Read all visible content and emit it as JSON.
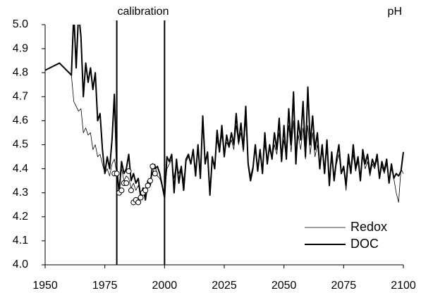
{
  "chart_data": {
    "type": "line",
    "annotation": "calibration",
    "ylabel": "pH",
    "xlim": [
      1950,
      2100
    ],
    "xticks": [
      1950,
      1975,
      2000,
      2025,
      2050,
      2075,
      2100
    ],
    "ylim": [
      4.0,
      5.0
    ],
    "yticks": [
      {
        "value": 4.0,
        "label": "4.0"
      },
      4.1,
      4.2,
      4.3,
      4.4,
      4.5,
      4.6,
      4.7,
      4.8,
      4.9,
      {
        "value": 5.0,
        "label": "5.0"
      }
    ],
    "vlines": [
      1980,
      2000
    ],
    "legend": "lower right",
    "x": [
      1950,
      1952,
      1956,
      1961,
      1962,
      1963,
      1964,
      1965,
      1966,
      1967,
      1968,
      1969,
      1970,
      1971,
      1972,
      1973,
      1974,
      1975,
      1976,
      1977,
      1978,
      1979,
      1980,
      1981,
      1982,
      1983,
      1984,
      1985,
      1986,
      1987,
      1988,
      1989,
      1990,
      1991,
      1992,
      1993,
      1994,
      1995,
      1996,
      1997,
      1998,
      1999,
      2000,
      2001,
      2002,
      2003,
      2004,
      2005,
      2006,
      2007,
      2008,
      2009,
      2010,
      2011,
      2012,
      2013,
      2014,
      2015,
      2016,
      2017,
      2018,
      2019,
      2020,
      2021,
      2022,
      2023,
      2024,
      2025,
      2026,
      2027,
      2028,
      2029,
      2030,
      2031,
      2032,
      2033,
      2034,
      2035,
      2036,
      2037,
      2038,
      2039,
      2040,
      2041,
      2042,
      2043,
      2044,
      2045,
      2046,
      2047,
      2048,
      2049,
      2050,
      2051,
      2052,
      2053,
      2054,
      2055,
      2056,
      2057,
      2058,
      2059,
      2060,
      2061,
      2062,
      2063,
      2064,
      2065,
      2066,
      2067,
      2068,
      2069,
      2070,
      2071,
      2072,
      2073,
      2074,
      2075,
      2076,
      2077,
      2078,
      2079,
      2080,
      2081,
      2082,
      2083,
      2084,
      2085,
      2086,
      2087,
      2088,
      2089,
      2090,
      2091,
      2092,
      2093,
      2094,
      2095,
      2096,
      2097,
      2098,
      2099,
      2100
    ],
    "series": [
      {
        "name": "Redox",
        "color": "#000000",
        "width": 0.8,
        "values": [
          4.81,
          4.82,
          4.84,
          4.79,
          4.68,
          4.66,
          4.64,
          4.65,
          4.55,
          4.57,
          4.54,
          4.55,
          4.48,
          4.5,
          4.45,
          4.46,
          4.42,
          4.38,
          4.4,
          4.37,
          4.42,
          4.44,
          4.38,
          4.33,
          4.4,
          4.35,
          4.37,
          4.36,
          4.32,
          4.34,
          4.31,
          4.33,
          4.3,
          4.32,
          4.29,
          4.33,
          4.35,
          4.38,
          4.42,
          4.37,
          4.36,
          4.33,
          4.3,
          4.4,
          4.42,
          4.44,
          4.36,
          4.43,
          4.38,
          4.41,
          4.35,
          4.43,
          4.45,
          4.42,
          4.47,
          4.4,
          4.48,
          4.38,
          4.58,
          4.44,
          4.46,
          4.33,
          4.43,
          4.42,
          4.52,
          4.47,
          4.54,
          4.46,
          4.51,
          4.49,
          4.52,
          4.48,
          4.58,
          4.5,
          4.55,
          4.47,
          4.6,
          4.43,
          4.37,
          4.41,
          4.48,
          4.4,
          4.46,
          4.39,
          4.5,
          4.43,
          4.48,
          4.44,
          4.5,
          4.46,
          4.55,
          4.43,
          4.52,
          4.44,
          4.58,
          4.47,
          4.6,
          4.43,
          4.54,
          4.48,
          4.57,
          4.44,
          4.58,
          4.46,
          4.55,
          4.45,
          4.5,
          4.41,
          4.47,
          4.39,
          4.48,
          4.36,
          4.44,
          4.37,
          4.42,
          4.46,
          4.38,
          4.4,
          4.31,
          4.43,
          4.38,
          4.46,
          4.39,
          4.43,
          4.36,
          4.45,
          4.4,
          4.43,
          4.37,
          4.42,
          4.4,
          4.44,
          4.36,
          4.41,
          4.38,
          4.42,
          4.35,
          4.4,
          4.36,
          4.3,
          4.26,
          4.4,
          4.38
        ]
      },
      {
        "name": "DOC",
        "color": "#000000",
        "width": 2,
        "values": [
          4.81,
          4.82,
          4.84,
          4.79,
          5.05,
          4.82,
          5.05,
          4.95,
          4.7,
          4.84,
          4.76,
          4.82,
          4.73,
          4.8,
          4.6,
          4.63,
          4.48,
          4.38,
          4.45,
          4.4,
          4.52,
          4.71,
          4.4,
          4.3,
          4.43,
          4.38,
          4.4,
          4.46,
          4.35,
          4.38,
          4.34,
          4.36,
          4.28,
          4.32,
          4.27,
          4.35,
          4.33,
          4.42,
          4.4,
          4.41,
          4.38,
          4.33,
          4.28,
          4.45,
          4.43,
          4.46,
          4.3,
          4.44,
          4.34,
          4.41,
          4.31,
          4.44,
          4.46,
          4.42,
          4.48,
          4.37,
          4.5,
          4.36,
          4.62,
          4.42,
          4.47,
          4.29,
          4.45,
          4.4,
          4.56,
          4.47,
          4.58,
          4.45,
          4.54,
          4.49,
          4.55,
          4.5,
          4.63,
          4.51,
          4.59,
          4.48,
          4.66,
          4.42,
          4.35,
          4.4,
          4.5,
          4.39,
          4.48,
          4.38,
          4.55,
          4.42,
          4.5,
          4.44,
          4.55,
          4.48,
          4.61,
          4.43,
          4.58,
          4.44,
          4.65,
          4.5,
          4.72,
          4.42,
          4.6,
          4.52,
          4.68,
          4.45,
          4.74,
          4.5,
          4.62,
          4.48,
          4.55,
          4.4,
          4.5,
          4.38,
          4.52,
          4.33,
          4.47,
          4.35,
          4.44,
          4.5,
          4.38,
          4.41,
          4.33,
          4.46,
          4.38,
          4.5,
          4.4,
          4.45,
          4.35,
          4.48,
          4.42,
          4.46,
          4.38,
          4.44,
          4.41,
          4.46,
          4.36,
          4.43,
          4.39,
          4.44,
          4.34,
          4.42,
          4.36,
          4.38,
          4.37,
          4.39,
          4.47
        ]
      }
    ],
    "observed": {
      "x": [
        1979,
        1980,
        1981,
        1982,
        1983,
        1984,
        1985,
        1986,
        1987,
        1988,
        1989,
        1990,
        1991,
        1992,
        1993,
        1994,
        1995,
        1996
      ],
      "values": [
        4.38,
        4.38,
        4.3,
        4.31,
        4.34,
        4.34,
        4.39,
        4.31,
        4.26,
        4.27,
        4.26,
        4.28,
        4.3,
        4.31,
        4.33,
        4.35,
        4.41,
        4.38
      ]
    }
  }
}
